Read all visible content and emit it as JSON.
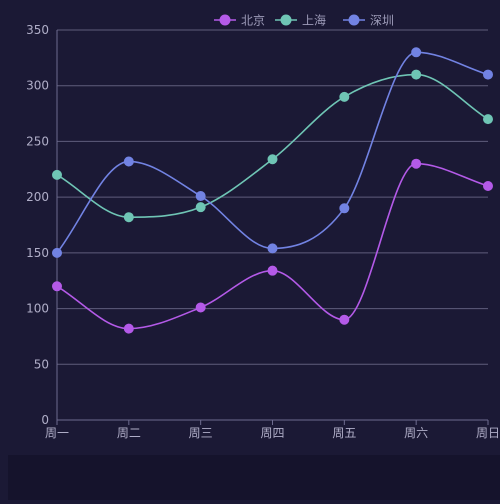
{
  "chart_data": {
    "type": "line",
    "smooth": true,
    "categories": [
      "周一",
      "周二",
      "周三",
      "周四",
      "周五",
      "周六",
      "周日"
    ],
    "ylim": [
      0,
      350
    ],
    "yticks": [
      0,
      50,
      100,
      150,
      200,
      250,
      300,
      350
    ],
    "grid": "horizontal",
    "legend_position": "top-right",
    "series": [
      {
        "name": "北京",
        "color": "#b45ae8",
        "values": [
          120,
          82,
          101,
          134,
          90,
          230,
          210
        ]
      },
      {
        "name": "上海",
        "color": "#6fc5b5",
        "values": [
          220,
          182,
          191,
          234,
          290,
          310,
          270
        ]
      },
      {
        "name": "深圳",
        "color": "#7283e3",
        "values": [
          150,
          232,
          201,
          154,
          190,
          330,
          310
        ]
      }
    ]
  },
  "colors": {
    "background": "#1b1935",
    "axis": "#6e6c90",
    "grid": "#5f5d7c",
    "label": "#b0aec8",
    "legend_text": "#9d9bb8",
    "bottom_strip": "#15132c"
  }
}
